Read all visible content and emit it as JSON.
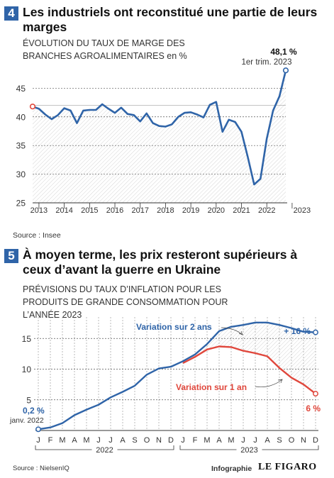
{
  "chart_data": [
    {
      "type": "line",
      "number": "4",
      "title": "Les industriels ont reconstitué une partie de leurs marges",
      "subtitle": "ÉVOLUTION DU TAUX DE MARGE DES BRANCHES AGROALIMENTAIRES en %",
      "source": "Source : Insee",
      "xlabel": "",
      "ylabel": "",
      "ylim": [
        25,
        49
      ],
      "yticks": [
        "25",
        "30",
        "35",
        "40",
        "45"
      ],
      "x_labels": [
        "2013",
        "2014",
        "2015",
        "2016",
        "2017",
        "2018",
        "2019",
        "2020",
        "2021",
        "2022",
        "2023"
      ],
      "x_start_year": 2012.75,
      "values": [
        41.8,
        41.4,
        40.4,
        39.6,
        40.3,
        41.5,
        41.1,
        38.9,
        41.1,
        41.2,
        41.2,
        42.2,
        41.4,
        40.7,
        41.6,
        40.5,
        40.3,
        39.2,
        40.6,
        38.9,
        38.4,
        38.3,
        38.7,
        40.0,
        40.7,
        40.8,
        40.4,
        39.9,
        42.1,
        42.6,
        37.4,
        39.5,
        39.1,
        37.4,
        33.0,
        28.2,
        29.2,
        36.2,
        41.1,
        43.6,
        48.1
      ],
      "highlight_value": 42,
      "annotation_value": "48,1 %",
      "annotation_label": "1er trim. 2023",
      "line_color": "#2f64a8",
      "start_marker_color": "#e0473c"
    },
    {
      "type": "line",
      "number": "5",
      "title": "À moyen terme, les prix resteront supérieurs à ceux d’avant la guerre en Ukraine",
      "subtitle": "PRÉVISIONS DU TAUX D’INFLATION POUR LES PRODUITS DE GRANDE CONSOMMATION POUR L’ANNÉE 2023",
      "source": "Source : NielsenIQ",
      "xlabel": "",
      "ylabel": "",
      "ylim": [
        0,
        18.5
      ],
      "yticks": [
        "5",
        "10",
        "15"
      ],
      "categories": [
        "J",
        "F",
        "M",
        "A",
        "M",
        "J",
        "J",
        "A",
        "S",
        "O",
        "N",
        "D",
        "J",
        "F",
        "M",
        "A",
        "M",
        "J",
        "J",
        "A",
        "S",
        "O",
        "N",
        "D"
      ],
      "year_labels": [
        "2022",
        "2023"
      ],
      "series": [
        {
          "name": "Variation sur 2 ans",
          "color": "#2f64a8",
          "values": [
            0.2,
            0.5,
            1.2,
            2.5,
            3.4,
            4.2,
            5.4,
            6.3,
            7.3,
            9.1,
            10.1,
            10.4,
            11.3,
            12.4,
            14.1,
            16.2,
            16.9,
            17.2,
            17.6,
            17.6,
            17.2,
            16.7,
            16.1,
            16.0
          ]
        },
        {
          "name": "Variation sur 1 an",
          "color": "#e0473c",
          "values": [
            null,
            null,
            null,
            null,
            null,
            null,
            null,
            null,
            null,
            null,
            null,
            null,
            11.0,
            12.0,
            13.2,
            13.7,
            13.6,
            13.0,
            12.6,
            12.1,
            10.2,
            8.6,
            7.5,
            6.0
          ]
        }
      ],
      "label_start_value": "0,2 %",
      "label_start_date": "janv. 2022",
      "label_end_2ans": "+ 16 %",
      "label_end_1an": "6 %",
      "credit": "Infographie",
      "brand": "LE FIGARO"
    }
  ]
}
